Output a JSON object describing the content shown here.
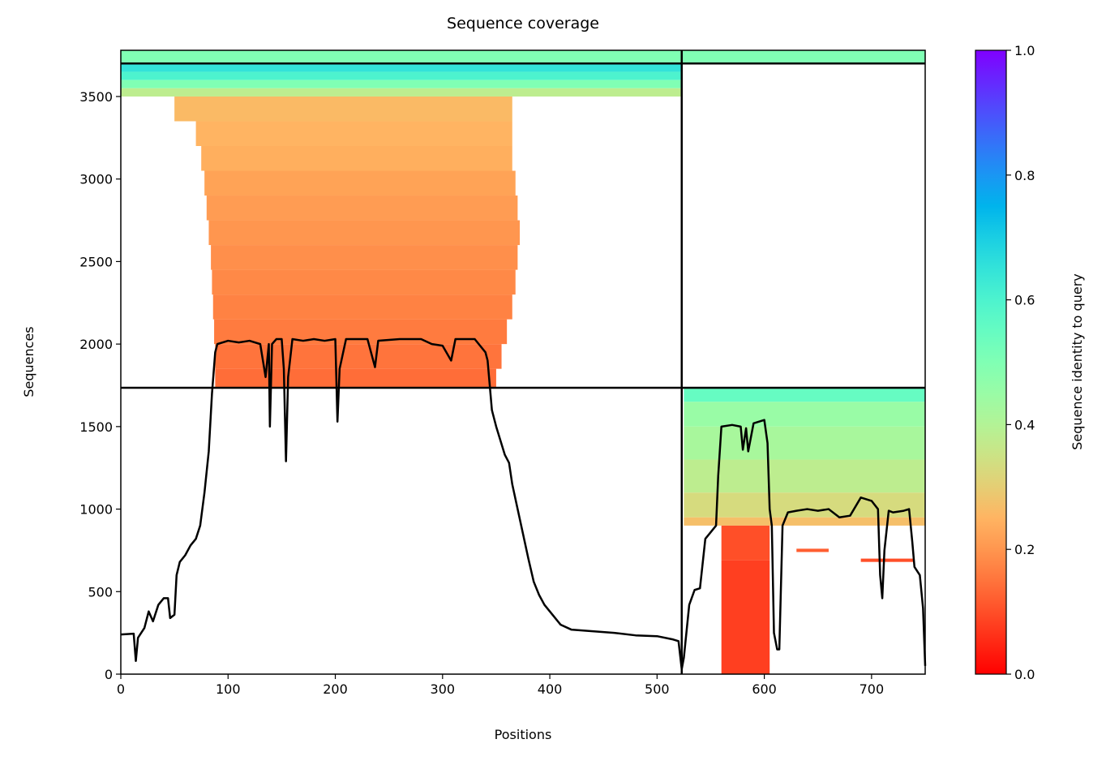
{
  "chart_data": {
    "type": "coverage",
    "title": "Sequence coverage",
    "xlabel": "Positions",
    "ylabel": "Sequences",
    "colorbar_label": "Sequence identity to query",
    "xlim": [
      0,
      750
    ],
    "ylim": [
      0,
      3780
    ],
    "xticks": [
      0,
      100,
      200,
      300,
      400,
      500,
      600,
      700
    ],
    "yticks": [
      0,
      500,
      1000,
      1500,
      2000,
      2500,
      3000,
      3500
    ],
    "colorbar_lim": [
      0,
      1
    ],
    "colorbar_ticks": [
      {
        "value": 0,
        "label": "0.0"
      },
      0.2,
      0.4,
      0.6,
      0.8,
      {
        "value": 1,
        "label": "1.0"
      }
    ],
    "colormap": "rainbow_r",
    "boundaries_x": [
      523
    ],
    "boundaries_y": [
      1735,
      3700
    ],
    "blocks": [
      {
        "y0": 3700,
        "y1": 3780,
        "x0": 0,
        "x1": 750,
        "identity": 0.5
      },
      {
        "y0": 3650,
        "y1": 3700,
        "x0": 0,
        "x1": 523,
        "identity": 0.65
      },
      {
        "y0": 3600,
        "y1": 3650,
        "x0": 0,
        "x1": 523,
        "identity": 0.6
      },
      {
        "y0": 3550,
        "y1": 3600,
        "x0": 0,
        "x1": 523,
        "identity": 0.5
      },
      {
        "y0": 3500,
        "y1": 3550,
        "x0": 0,
        "x1": 523,
        "identity": 0.38
      },
      {
        "y0": 3350,
        "y1": 3500,
        "x0": 50,
        "x1": 365,
        "identity": 0.26
      },
      {
        "y0": 3200,
        "y1": 3350,
        "x0": 70,
        "x1": 365,
        "identity": 0.25
      },
      {
        "y0": 3050,
        "y1": 3200,
        "x0": 75,
        "x1": 365,
        "identity": 0.24
      },
      {
        "y0": 2900,
        "y1": 3050,
        "x0": 78,
        "x1": 368,
        "identity": 0.22
      },
      {
        "y0": 2750,
        "y1": 2900,
        "x0": 80,
        "x1": 370,
        "identity": 0.21
      },
      {
        "y0": 2600,
        "y1": 2750,
        "x0": 82,
        "x1": 372,
        "identity": 0.2
      },
      {
        "y0": 2450,
        "y1": 2600,
        "x0": 84,
        "x1": 370,
        "identity": 0.19
      },
      {
        "y0": 2300,
        "y1": 2450,
        "x0": 85,
        "x1": 368,
        "identity": 0.18
      },
      {
        "y0": 2150,
        "y1": 2300,
        "x0": 86,
        "x1": 365,
        "identity": 0.17
      },
      {
        "y0": 2000,
        "y1": 2150,
        "x0": 87,
        "x1": 360,
        "identity": 0.16
      },
      {
        "y0": 1850,
        "y1": 2000,
        "x0": 88,
        "x1": 355,
        "identity": 0.15
      },
      {
        "y0": 1735,
        "y1": 1850,
        "x0": 88,
        "x1": 350,
        "identity": 0.14
      },
      {
        "y0": 1650,
        "y1": 1735,
        "x0": 525,
        "x1": 750,
        "identity": 0.55
      },
      {
        "y0": 1500,
        "y1": 1650,
        "x0": 525,
        "x1": 750,
        "identity": 0.45
      },
      {
        "y0": 1300,
        "y1": 1500,
        "x0": 525,
        "x1": 750,
        "identity": 0.42
      },
      {
        "y0": 1100,
        "y1": 1300,
        "x0": 525,
        "x1": 750,
        "identity": 0.38
      },
      {
        "y0": 950,
        "y1": 1100,
        "x0": 525,
        "x1": 750,
        "identity": 0.33
      },
      {
        "y0": 900,
        "y1": 950,
        "x0": 525,
        "x1": 750,
        "identity": 0.27
      },
      {
        "y0": 690,
        "y1": 900,
        "x0": 560,
        "x1": 605,
        "identity": 0.1
      },
      {
        "y0": 0,
        "y1": 690,
        "x0": 560,
        "x1": 605,
        "identity": 0.08
      },
      {
        "y0": 740,
        "y1": 760,
        "x0": 630,
        "x1": 660,
        "identity": 0.12
      },
      {
        "y0": 680,
        "y1": 700,
        "x0": 690,
        "x1": 740,
        "identity": 0.1
      }
    ],
    "coverage": {
      "color": "#000000",
      "x": [
        0,
        12,
        14,
        16,
        22,
        26,
        30,
        35,
        40,
        44,
        46,
        50,
        52,
        55,
        60,
        65,
        70,
        74,
        78,
        82,
        85,
        88,
        90,
        100,
        110,
        120,
        130,
        135,
        138,
        139,
        141,
        145,
        150,
        152,
        154,
        156,
        160,
        170,
        180,
        190,
        200,
        202,
        204,
        210,
        230,
        237,
        240,
        260,
        280,
        290,
        300,
        308,
        312,
        330,
        340,
        342,
        346,
        350,
        358,
        362,
        365,
        370,
        375,
        380,
        385,
        390,
        395,
        400,
        405,
        410,
        420,
        440,
        460,
        480,
        500,
        515,
        520,
        523,
        525,
        530,
        535,
        540,
        545,
        550,
        555,
        557,
        560,
        570,
        578,
        580,
        583,
        585,
        590,
        600,
        603,
        605,
        607,
        609,
        612,
        614,
        617,
        622,
        630,
        640,
        650,
        660,
        670,
        680,
        690,
        700,
        706,
        708,
        710,
        712,
        716,
        720,
        730,
        735,
        738,
        740,
        745,
        748,
        750
      ],
      "values": [
        240,
        245,
        80,
        220,
        280,
        380,
        320,
        420,
        460,
        460,
        340,
        360,
        600,
        680,
        720,
        780,
        820,
        900,
        1100,
        1350,
        1700,
        1950,
        2000,
        2020,
        2010,
        2020,
        2000,
        1800,
        2000,
        1500,
        2000,
        2030,
        2030,
        1850,
        1290,
        1800,
        2030,
        2020,
        2030,
        2020,
        2030,
        1530,
        1850,
        2030,
        2030,
        1860,
        2020,
        2030,
        2030,
        2000,
        1990,
        1900,
        2030,
        2030,
        1950,
        1900,
        1600,
        1500,
        1330,
        1280,
        1150,
        1000,
        850,
        700,
        560,
        480,
        420,
        380,
        340,
        300,
        270,
        260,
        250,
        235,
        230,
        210,
        200,
        30,
        100,
        420,
        510,
        520,
        820,
        860,
        900,
        1200,
        1500,
        1510,
        1500,
        1360,
        1490,
        1350,
        1520,
        1540,
        1400,
        1000,
        900,
        250,
        150,
        150,
        900,
        980,
        990,
        1000,
        990,
        1000,
        950,
        960,
        1070,
        1050,
        1000,
        600,
        460,
        750,
        990,
        980,
        990,
        1000,
        800,
        650,
        600,
        400,
        50
      ]
    }
  }
}
